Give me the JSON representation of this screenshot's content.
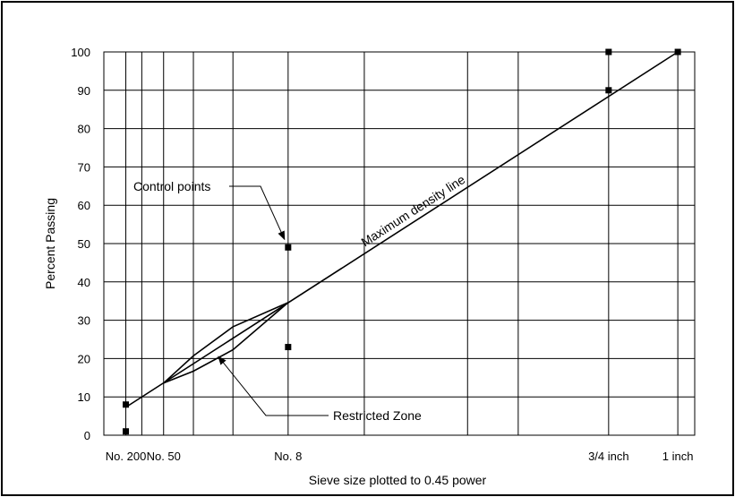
{
  "chart_data": {
    "type": "line",
    "xlabel": "Sieve size plotted to 0.45 power",
    "ylabel": "Percent Passing",
    "x_scale": "power 0.45 (sieve size in mm)",
    "ylim": [
      0,
      100
    ],
    "y_ticks": [
      0,
      10,
      20,
      30,
      40,
      50,
      60,
      70,
      80,
      90,
      100
    ],
    "grid": true,
    "x_gridlines_mm": [
      0.075,
      0.15,
      0.3,
      0.6,
      1.18,
      2.36,
      4.75,
      9.5,
      12.5,
      19,
      25
    ],
    "x_tick_labels": [
      {
        "label": "No. 200",
        "size_mm": 0.075
      },
      {
        "label": "No. 50",
        "size_mm": 0.3
      },
      {
        "label": "No. 8",
        "size_mm": 2.36
      },
      {
        "label": "3/4 inch",
        "size_mm": 19
      },
      {
        "label": "1 inch",
        "size_mm": 25
      }
    ],
    "maximum_density_line": {
      "name": "Maximum density line",
      "points": [
        {
          "x": 0.075,
          "y": 7.3
        },
        {
          "x": 25,
          "y": 100
        }
      ]
    },
    "control_points": {
      "name": "Control points",
      "points": [
        {
          "x": 0.075,
          "y": 1
        },
        {
          "x": 0.075,
          "y": 8
        },
        {
          "x": 2.36,
          "y": 23
        },
        {
          "x": 2.36,
          "y": 49
        },
        {
          "x": 19,
          "y": 90
        },
        {
          "x": 19,
          "y": 100
        },
        {
          "x": 25,
          "y": 100
        }
      ]
    },
    "restricted_zone": {
      "name": "Restricted Zone",
      "upper": [
        {
          "x": 0.3,
          "y": 13.6
        },
        {
          "x": 0.6,
          "y": 20.7
        },
        {
          "x": 1.18,
          "y": 28.3
        },
        {
          "x": 2.36,
          "y": 34.6
        }
      ],
      "lower": [
        {
          "x": 0.3,
          "y": 13.6
        },
        {
          "x": 0.6,
          "y": 16.7
        },
        {
          "x": 1.18,
          "y": 22.3
        },
        {
          "x": 2.36,
          "y": 34.6
        }
      ]
    },
    "annotations": [
      {
        "text": "Control points",
        "target": {
          "x": 2.36,
          "y": 49
        }
      },
      {
        "text": "Maximum density line"
      },
      {
        "text": "Restricted Zone",
        "target": {
          "x": 0.9,
          "y": 21
        }
      }
    ]
  }
}
